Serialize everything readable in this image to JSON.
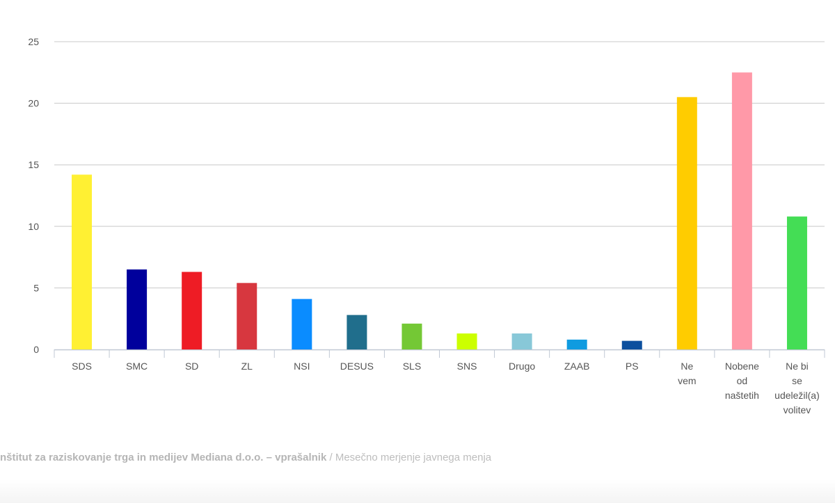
{
  "chart_data": {
    "type": "bar",
    "categories": [
      [
        "SDS"
      ],
      [
        "SMC"
      ],
      [
        "SD"
      ],
      [
        "ZL"
      ],
      [
        "NSI"
      ],
      [
        "DESUS"
      ],
      [
        "SLS"
      ],
      [
        "SNS"
      ],
      [
        "Drugo"
      ],
      [
        "ZAAB"
      ],
      [
        "PS"
      ],
      [
        "Ne",
        "vem"
      ],
      [
        "Nobene",
        "od",
        "naštetih"
      ],
      [
        "Ne bi",
        "se",
        "udeležil(a)",
        "volitev"
      ]
    ],
    "values": [
      14.2,
      6.5,
      6.3,
      5.4,
      4.1,
      2.8,
      2.1,
      1.3,
      1.3,
      0.8,
      0.7,
      20.5,
      22.5,
      10.8
    ],
    "colors": [
      "#fff033",
      "#00009c",
      "#ee1c25",
      "#d7373f",
      "#0a8cff",
      "#206e8c",
      "#74c835",
      "#ccff00",
      "#88c8d8",
      "#0f9be0",
      "#0b4f9e",
      "#ffcc00",
      "#ff99a8",
      "#44dd55"
    ],
    "yticks": [
      0,
      5,
      10,
      15,
      20,
      25
    ],
    "ylim": [
      0,
      25
    ],
    "grid": true,
    "title": "",
    "xlabel": "",
    "ylabel": ""
  },
  "footer": {
    "source": "nštitut za raziskovanje trga in medijev Mediana d.o.o. – vprašalnik",
    "separator": " / ",
    "description": "Mesečno merjenje javnega menja"
  }
}
